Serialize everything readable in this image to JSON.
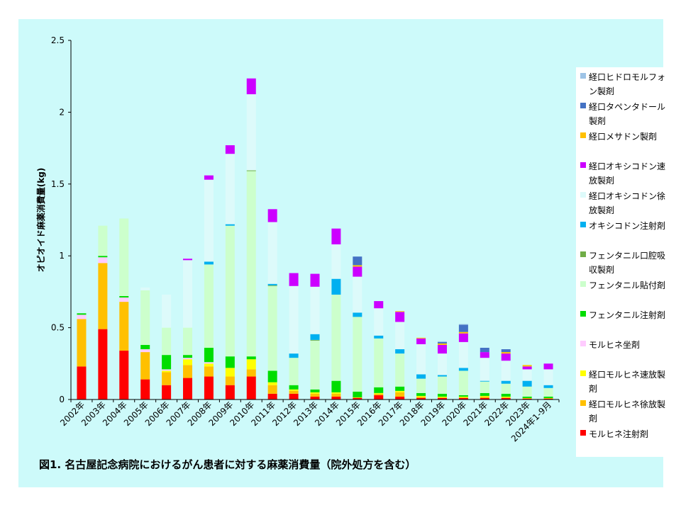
{
  "caption": "図1.  名古屋記念病院におけるがん患者に対する麻薬消費量（院外処方を含む）",
  "chart_data": {
    "type": "bar",
    "stacked": true,
    "title": "",
    "xlabel": "",
    "ylabel": "オピオイド麻薬消費量(kg)",
    "ylim": [
      0,
      2.5
    ],
    "yticks": [
      "0",
      "0.5",
      "1",
      "1.5",
      "2",
      "2.5"
    ],
    "ytick_values": [
      0,
      0.5,
      1,
      1.5,
      2,
      2.5
    ],
    "grid": false,
    "legend": "right",
    "categories": [
      "2002年",
      "2003年",
      "2004年",
      "2005年",
      "2006年",
      "2007年",
      "2008年",
      "2009年",
      "2010年",
      "2011年",
      "2012年",
      "2013年",
      "2014年",
      "2015年",
      "2016年",
      "2017年",
      "2018年",
      "2019年",
      "2020年",
      "2021年",
      "2022年",
      "2023年",
      "2024年1-9月"
    ],
    "series": [
      {
        "name": "モルヒネ注射剤",
        "color": "#ff0000",
        "values": [
          0.23,
          0.49,
          0.34,
          0.14,
          0.1,
          0.15,
          0.16,
          0.1,
          0.16,
          0.04,
          0.04,
          0.02,
          0.02,
          0.01,
          0.03,
          0.02,
          0.01,
          0.01,
          0.01,
          0.01,
          0.01,
          0.005,
          0.005
        ]
      },
      {
        "name": "経口モルヒネ徐放製剤",
        "color": "#ffc000",
        "values": [
          0.33,
          0.46,
          0.34,
          0.19,
          0.09,
          0.09,
          0.07,
          0.06,
          0.05,
          0.06,
          0.02,
          0.02,
          0.02,
          0.005,
          0.01,
          0.03,
          0.01,
          0.005,
          0.005,
          0.01,
          0.005,
          0.005,
          0.005
        ]
      },
      {
        "name": "経口モルヒネ速放製剤",
        "color": "#ffff00",
        "values": [
          0,
          0,
          0,
          0,
          0.01,
          0.04,
          0.02,
          0.06,
          0.07,
          0.02,
          0.01,
          0.01,
          0.01,
          0,
          0.005,
          0.01,
          0.005,
          0.005,
          0.005,
          0.005,
          0.005,
          0,
          0
        ]
      },
      {
        "name": "モルヒネ坐剤",
        "color": "#ffccff",
        "values": [
          0.03,
          0.04,
          0.03,
          0.02,
          0.01,
          0.01,
          0.01,
          0,
          0,
          0,
          0,
          0,
          0,
          0,
          0,
          0,
          0,
          0,
          0,
          0,
          0,
          0,
          0
        ]
      },
      {
        "name": "フェンタニル注射剤",
        "color": "#00dd00",
        "values": [
          0.01,
          0.01,
          0.01,
          0.03,
          0.1,
          0.02,
          0.1,
          0.08,
          0.02,
          0.08,
          0.03,
          0.02,
          0.08,
          0.04,
          0.04,
          0.03,
          0.02,
          0.02,
          0.01,
          0.02,
          0.02,
          0.01,
          0.01
        ]
      },
      {
        "name": "フェンタニル貼付剤",
        "color": "#ccffcc",
        "values": [
          0,
          0.21,
          0.54,
          0.38,
          0.19,
          0.19,
          0.58,
          0.91,
          1.29,
          0.59,
          0.19,
          0.34,
          0.6,
          0.52,
          0.34,
          0.23,
          0.1,
          0.12,
          0.17,
          0.08,
          0.07,
          0.07,
          0.06
        ]
      },
      {
        "name": "フェンタニル口腔吸収製剤",
        "color": "#70ad47",
        "values": [
          0,
          0,
          0,
          0,
          0,
          0,
          0,
          0,
          0.005,
          0.005,
          0,
          0.005,
          0,
          0,
          0,
          0,
          0,
          0,
          0,
          0,
          0,
          0,
          0
        ]
      },
      {
        "name": "オキシコドン注射剤",
        "color": "#00b0f0",
        "values": [
          0,
          0,
          0,
          0,
          0,
          0,
          0.02,
          0.01,
          0,
          0.01,
          0.03,
          0.04,
          0.11,
          0.03,
          0.02,
          0.03,
          0.03,
          0.01,
          0.02,
          0.005,
          0.02,
          0.04,
          0.02
        ]
      },
      {
        "name": "経口オキシコドン徐放製剤",
        "color": "#ddfafa",
        "values": [
          0,
          0,
          0,
          0.02,
          0.23,
          0.47,
          0.57,
          0.49,
          0.53,
          0.43,
          0.47,
          0.33,
          0.24,
          0.25,
          0.19,
          0.19,
          0.21,
          0.15,
          0.18,
          0.16,
          0.14,
          0.08,
          0.11
        ]
      },
      {
        "name": "経口オキシコドン速放製剤",
        "color": "#cc00ff",
        "values": [
          0,
          0,
          0,
          0,
          0,
          0.01,
          0.03,
          0.06,
          0.11,
          0.09,
          0.09,
          0.09,
          0.11,
          0.07,
          0.05,
          0.07,
          0.04,
          0.06,
          0.06,
          0.04,
          0.05,
          0.02,
          0.04
        ]
      },
      {
        "name": "経口メサドン製剤",
        "color": "#ffc000",
        "values": [
          0,
          0,
          0,
          0,
          0,
          0,
          0,
          0,
          0,
          0,
          0,
          0,
          0,
          0.01,
          0,
          0.005,
          0.005,
          0.01,
          0.01,
          0,
          0.01,
          0.01,
          0
        ]
      },
      {
        "name": "経口タペンタドール製剤",
        "color": "#4472c4",
        "values": [
          0,
          0,
          0,
          0,
          0,
          0,
          0,
          0,
          0,
          0,
          0,
          0,
          0,
          0.06,
          0,
          0,
          0,
          0.01,
          0.05,
          0.03,
          0.02,
          0,
          0
        ]
      },
      {
        "name": "経口ヒドロモルフォン製剤",
        "color": "#9dc3e6",
        "values": [
          0,
          0,
          0,
          0,
          0,
          0,
          0,
          0,
          0,
          0,
          0,
          0,
          0,
          0,
          0,
          0,
          0,
          0.005,
          0.005,
          0,
          0,
          0,
          0
        ]
      }
    ]
  },
  "legend_order": [
    12,
    11,
    10,
    9,
    8,
    7,
    6,
    5,
    4,
    3,
    2,
    1,
    0
  ]
}
